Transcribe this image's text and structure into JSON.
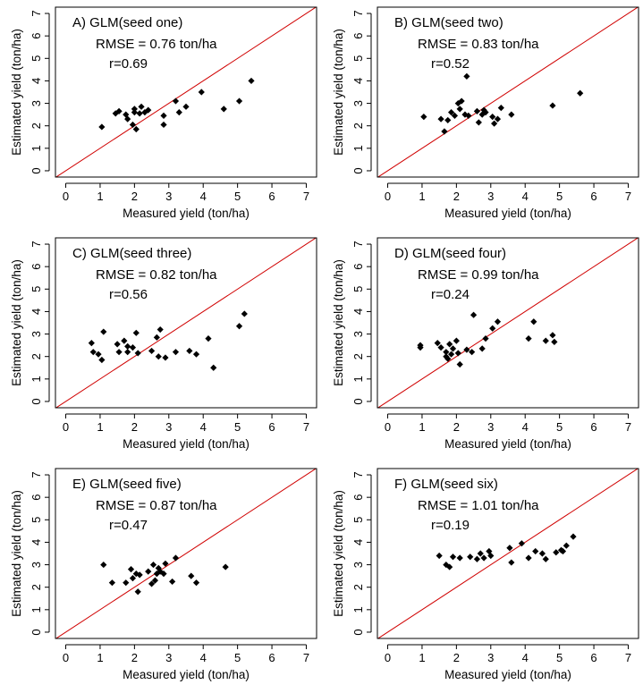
{
  "chart_data": [
    {
      "type": "scatter",
      "title": "A) GLM(seed one)",
      "rmse_label": "RMSE = 0.76 ton/ha",
      "r_label": "r=0.69",
      "xlabel": "Measured yield (ton/ha)",
      "ylabel": "Estimated yield (ton/ha)",
      "xlim": [
        0,
        7
      ],
      "ylim": [
        0,
        7
      ],
      "xticks": [
        "0",
        "1",
        "2",
        "3",
        "4",
        "5",
        "6",
        "7"
      ],
      "yticks": [
        "0",
        "1",
        "2",
        "3",
        "4",
        "5",
        "6",
        "7"
      ],
      "reference_line": "1:1",
      "points": [
        [
          1.05,
          1.95
        ],
        [
          1.45,
          2.55
        ],
        [
          1.55,
          2.65
        ],
        [
          1.75,
          2.5
        ],
        [
          1.8,
          2.3
        ],
        [
          1.95,
          2.05
        ],
        [
          2.0,
          2.6
        ],
        [
          2.0,
          2.75
        ],
        [
          2.05,
          1.85
        ],
        [
          2.15,
          2.55
        ],
        [
          2.2,
          2.85
        ],
        [
          2.3,
          2.6
        ],
        [
          2.4,
          2.7
        ],
        [
          2.85,
          2.05
        ],
        [
          2.85,
          2.45
        ],
        [
          3.2,
          3.1
        ],
        [
          3.3,
          2.6
        ],
        [
          3.5,
          2.85
        ],
        [
          3.95,
          3.5
        ],
        [
          4.6,
          2.75
        ],
        [
          5.05,
          3.1
        ],
        [
          5.4,
          4.0
        ]
      ]
    },
    {
      "type": "scatter",
      "title": "B) GLM(seed two)",
      "rmse_label": "RMSE = 0.83 ton/ha",
      "r_label": "r=0.52",
      "xlabel": "Measured yield (ton/ha)",
      "ylabel": "Estimated yield (ton/ha)",
      "xlim": [
        0,
        7
      ],
      "ylim": [
        0,
        7
      ],
      "xticks": [
        "0",
        "1",
        "2",
        "3",
        "4",
        "5",
        "6",
        "7"
      ],
      "yticks": [
        "0",
        "1",
        "2",
        "3",
        "4",
        "5",
        "6",
        "7"
      ],
      "reference_line": "1:1",
      "points": [
        [
          1.05,
          2.4
        ],
        [
          1.55,
          2.3
        ],
        [
          1.65,
          1.75
        ],
        [
          1.75,
          2.25
        ],
        [
          1.85,
          2.6
        ],
        [
          1.95,
          2.45
        ],
        [
          2.05,
          3.0
        ],
        [
          2.1,
          2.75
        ],
        [
          2.15,
          3.1
        ],
        [
          2.25,
          2.5
        ],
        [
          2.3,
          4.2
        ],
        [
          2.35,
          2.45
        ],
        [
          2.6,
          2.65
        ],
        [
          2.65,
          2.15
        ],
        [
          2.75,
          2.5
        ],
        [
          2.8,
          2.7
        ],
        [
          2.85,
          2.6
        ],
        [
          3.05,
          2.4
        ],
        [
          3.1,
          2.1
        ],
        [
          3.2,
          2.3
        ],
        [
          3.3,
          2.8
        ],
        [
          3.6,
          2.5
        ],
        [
          4.8,
          2.9
        ],
        [
          5.6,
          3.45
        ]
      ]
    },
    {
      "type": "scatter",
      "title": "C) GLM(seed three)",
      "rmse_label": "RMSE = 0.82 ton/ha",
      "r_label": "r=0.56",
      "xlabel": "Measured yield (ton/ha)",
      "ylabel": "Estimated yield (ton/ha)",
      "xlim": [
        0,
        7
      ],
      "ylim": [
        0,
        7
      ],
      "xticks": [
        "0",
        "1",
        "2",
        "3",
        "4",
        "5",
        "6",
        "7"
      ],
      "yticks": [
        "0",
        "1",
        "2",
        "3",
        "4",
        "5",
        "6",
        "7"
      ],
      "reference_line": "1:1",
      "points": [
        [
          0.75,
          2.6
        ],
        [
          0.8,
          2.2
        ],
        [
          0.95,
          2.1
        ],
        [
          1.05,
          1.85
        ],
        [
          1.1,
          3.1
        ],
        [
          1.5,
          2.55
        ],
        [
          1.55,
          2.2
        ],
        [
          1.7,
          2.7
        ],
        [
          1.8,
          2.45
        ],
        [
          1.8,
          2.2
        ],
        [
          1.95,
          2.4
        ],
        [
          2.05,
          3.05
        ],
        [
          2.1,
          2.15
        ],
        [
          2.5,
          2.25
        ],
        [
          2.65,
          2.85
        ],
        [
          2.7,
          2.0
        ],
        [
          2.75,
          3.2
        ],
        [
          2.9,
          1.95
        ],
        [
          3.2,
          2.2
        ],
        [
          3.6,
          2.25
        ],
        [
          3.8,
          2.1
        ],
        [
          4.15,
          2.8
        ],
        [
          4.3,
          1.5
        ],
        [
          5.05,
          3.35
        ],
        [
          5.2,
          3.9
        ]
      ]
    },
    {
      "type": "scatter",
      "title": "D) GLM(seed four)",
      "rmse_label": "RMSE = 0.99 ton/ha",
      "r_label": "r=0.24",
      "xlabel": "Measured yield (ton/ha)",
      "ylabel": "Estimated yield (ton/ha)",
      "xlim": [
        0,
        7
      ],
      "ylim": [
        0,
        7
      ],
      "xticks": [
        "0",
        "1",
        "2",
        "3",
        "4",
        "5",
        "6",
        "7"
      ],
      "yticks": [
        "0",
        "1",
        "2",
        "3",
        "4",
        "5",
        "6",
        "7"
      ],
      "reference_line": "1:1",
      "points": [
        [
          0.95,
          2.5
        ],
        [
          0.95,
          2.4
        ],
        [
          1.45,
          2.6
        ],
        [
          1.55,
          2.4
        ],
        [
          1.7,
          2.0
        ],
        [
          1.7,
          2.2
        ],
        [
          1.75,
          1.9
        ],
        [
          1.8,
          2.55
        ],
        [
          1.85,
          2.1
        ],
        [
          1.9,
          2.35
        ],
        [
          2.0,
          2.7
        ],
        [
          2.05,
          2.15
        ],
        [
          2.1,
          1.65
        ],
        [
          2.3,
          2.3
        ],
        [
          2.45,
          2.2
        ],
        [
          2.5,
          3.85
        ],
        [
          2.75,
          2.35
        ],
        [
          2.85,
          2.8
        ],
        [
          3.05,
          3.25
        ],
        [
          3.2,
          3.55
        ],
        [
          4.1,
          2.8
        ],
        [
          4.25,
          3.55
        ],
        [
          4.6,
          2.7
        ],
        [
          4.8,
          2.95
        ],
        [
          4.85,
          2.65
        ]
      ]
    },
    {
      "type": "scatter",
      "title": "E) GLM(seed five)",
      "rmse_label": "RMSE = 0.87 ton/ha",
      "r_label": "r=0.47",
      "xlabel": "Measured yield (ton/ha)",
      "ylabel": "Estimated yield (ton/ha)",
      "xlim": [
        0,
        7
      ],
      "ylim": [
        0,
        7
      ],
      "xticks": [
        "0",
        "1",
        "2",
        "3",
        "4",
        "5",
        "6",
        "7"
      ],
      "yticks": [
        "0",
        "1",
        "2",
        "3",
        "4",
        "5",
        "6",
        "7"
      ],
      "reference_line": "1:1",
      "points": [
        [
          1.1,
          3.0
        ],
        [
          1.35,
          2.2
        ],
        [
          1.75,
          2.2
        ],
        [
          1.9,
          2.8
        ],
        [
          1.95,
          2.4
        ],
        [
          2.05,
          2.6
        ],
        [
          2.1,
          1.8
        ],
        [
          2.15,
          2.55
        ],
        [
          2.4,
          2.7
        ],
        [
          2.5,
          2.15
        ],
        [
          2.55,
          3.0
        ],
        [
          2.6,
          2.3
        ],
        [
          2.65,
          2.6
        ],
        [
          2.7,
          2.85
        ],
        [
          2.75,
          2.7
        ],
        [
          2.85,
          2.6
        ],
        [
          2.9,
          3.05
        ],
        [
          3.1,
          2.25
        ],
        [
          3.2,
          3.3
        ],
        [
          3.65,
          2.5
        ],
        [
          3.8,
          2.2
        ],
        [
          4.65,
          2.9
        ]
      ]
    },
    {
      "type": "scatter",
      "title": "F) GLM(seed six)",
      "rmse_label": "RMSE = 1.01 ton/ha",
      "r_label": "r=0.19",
      "xlabel": "Measured yield (ton/ha)",
      "ylabel": "Estimated yield (ton/ha)",
      "xlim": [
        0,
        7
      ],
      "ylim": [
        0,
        7
      ],
      "xticks": [
        "0",
        "1",
        "2",
        "3",
        "4",
        "5",
        "6",
        "7"
      ],
      "yticks": [
        "0",
        "1",
        "2",
        "3",
        "4",
        "5",
        "6",
        "7"
      ],
      "reference_line": "1:1",
      "points": [
        [
          1.5,
          3.4
        ],
        [
          1.7,
          3.0
        ],
        [
          1.8,
          2.9
        ],
        [
          1.9,
          3.35
        ],
        [
          2.1,
          3.3
        ],
        [
          2.4,
          3.35
        ],
        [
          2.6,
          3.25
        ],
        [
          2.7,
          3.5
        ],
        [
          2.8,
          3.3
        ],
        [
          2.95,
          3.6
        ],
        [
          3.0,
          3.4
        ],
        [
          3.55,
          3.75
        ],
        [
          3.6,
          3.1
        ],
        [
          3.9,
          3.95
        ],
        [
          4.1,
          3.3
        ],
        [
          4.3,
          3.6
        ],
        [
          4.5,
          3.5
        ],
        [
          4.6,
          3.25
        ],
        [
          4.9,
          3.55
        ],
        [
          5.05,
          3.65
        ],
        [
          5.1,
          3.6
        ],
        [
          5.2,
          3.85
        ],
        [
          5.4,
          4.25
        ]
      ]
    }
  ]
}
